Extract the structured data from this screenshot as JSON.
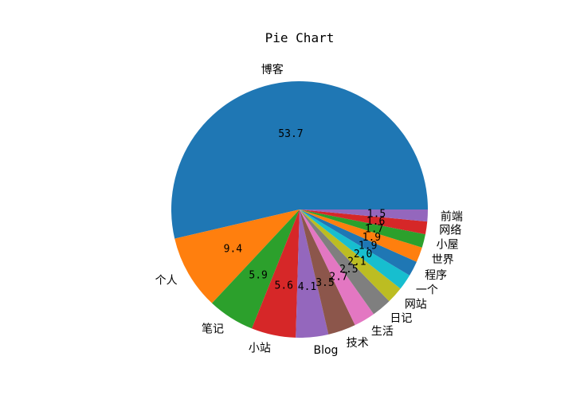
{
  "chart_data": {
    "type": "pie",
    "title": "Pie Chart",
    "start_angle_deg": 0,
    "direction": "counterclockwise",
    "slices": [
      {
        "label": "博客",
        "value": 53.7,
        "pct_label": "53.7",
        "color": "#1f77b4"
      },
      {
        "label": "个人",
        "value": 9.4,
        "pct_label": "9.4",
        "color": "#ff7f0e"
      },
      {
        "label": "笔记",
        "value": 5.9,
        "pct_label": "5.9",
        "color": "#2ca02c"
      },
      {
        "label": "小站",
        "value": 5.6,
        "pct_label": "5.6",
        "color": "#d62728"
      },
      {
        "label": "Blog",
        "value": 4.1,
        "pct_label": "4.1",
        "color": "#9467bd"
      },
      {
        "label": "技术",
        "value": 3.5,
        "pct_label": "3.5",
        "color": "#8c564b"
      },
      {
        "label": "生活",
        "value": 2.7,
        "pct_label": "2.7",
        "color": "#e377c2"
      },
      {
        "label": "日记",
        "value": 2.5,
        "pct_label": "2.5",
        "color": "#7f7f7f"
      },
      {
        "label": "网站",
        "value": 2.1,
        "pct_label": "2.1",
        "color": "#bcbd22"
      },
      {
        "label": "一个",
        "value": 2.0,
        "pct_label": "2.0",
        "color": "#17becf"
      },
      {
        "label": "程序",
        "value": 1.9,
        "pct_label": "1.9",
        "color": "#1f77b4"
      },
      {
        "label": "世界",
        "value": 1.9,
        "pct_label": "1.9",
        "color": "#ff7f0e"
      },
      {
        "label": "小屋",
        "value": 1.7,
        "pct_label": "1.7",
        "color": "#2ca02c"
      },
      {
        "label": "网络",
        "value": 1.6,
        "pct_label": "1.6",
        "color": "#d62728"
      },
      {
        "label": "前端",
        "value": 1.5,
        "pct_label": "1.5",
        "color": "#9467bd"
      }
    ]
  }
}
